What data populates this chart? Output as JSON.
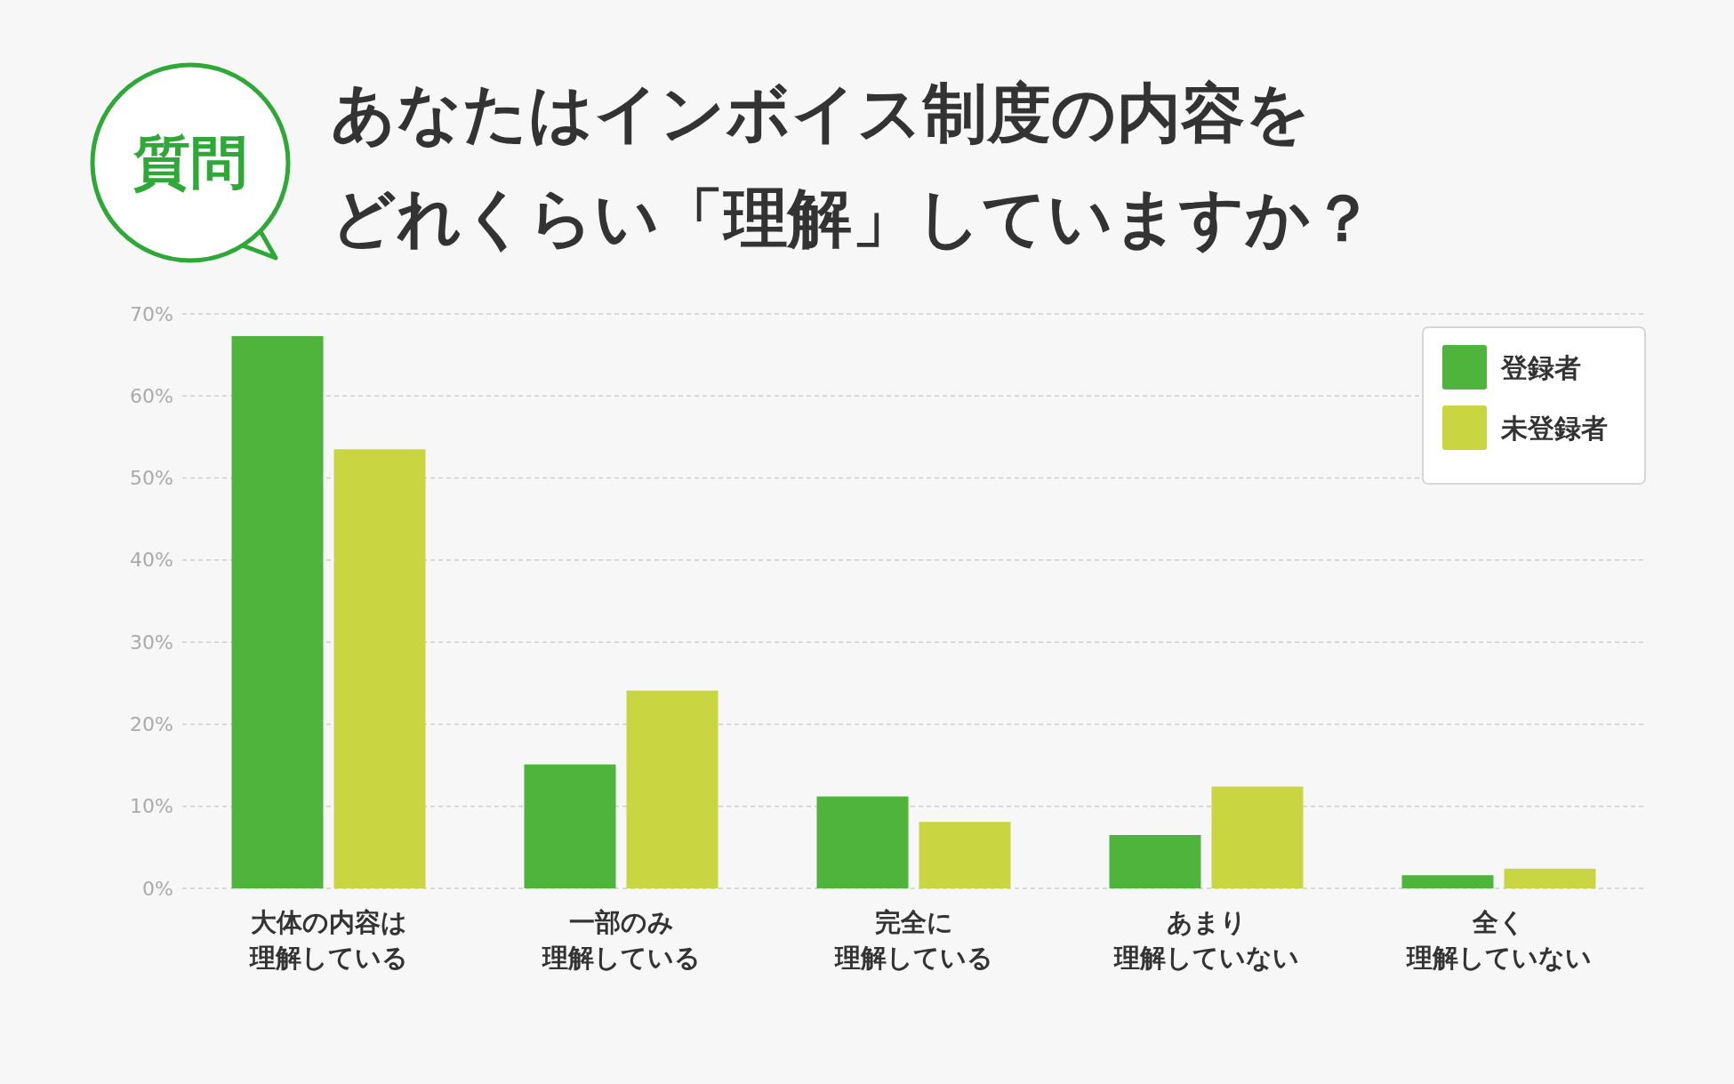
{
  "chart_data": {
    "type": "bar",
    "title": "あなたはインボイス制度の内容をどれくらい「理解」していますか？",
    "annotations": [
      "質問"
    ],
    "categories": [
      "大体の内容は理解している",
      "一部のみ理解している",
      "完全に理解している",
      "あまり理解していない",
      "全く理解していない"
    ],
    "series": [
      {
        "name": "登録者",
        "color": "#4fb43c",
        "values": [
          67.3,
          15.1,
          11.2,
          6.5,
          1.6
        ]
      },
      {
        "name": "未登録者",
        "color": "#c9d642",
        "values": [
          53.5,
          24.1,
          8.1,
          12.4,
          2.4
        ]
      }
    ],
    "ylim": [
      0,
      70
    ],
    "yticks": [
      {
        "value": 0,
        "label": "0%"
      },
      {
        "value": 10,
        "label": "10%"
      },
      {
        "value": 20,
        "label": "20%"
      },
      {
        "value": 30,
        "label": "30%"
      },
      {
        "value": 40,
        "label": "40%"
      },
      {
        "value": 50,
        "label": "50%"
      },
      {
        "value": 60,
        "label": "60%"
      },
      {
        "value": 70,
        "label": "70%"
      }
    ],
    "grid": "y",
    "legend": "top right"
  }
}
